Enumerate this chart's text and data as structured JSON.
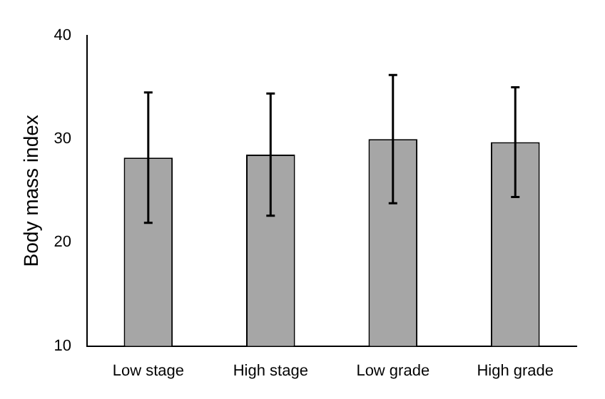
{
  "chart_data": {
    "type": "bar",
    "ylabel": "Body mass index",
    "categories": [
      "Low stage",
      "High stage",
      "Low grade",
      "High grade"
    ],
    "values": [
      28.2,
      28.5,
      30.0,
      29.7
    ],
    "color": "#a6a6a6",
    "errors": [
      6.3,
      5.9,
      6.2,
      5.3
    ],
    "ylim": [
      10,
      40
    ],
    "yticks": [
      10,
      20,
      30,
      40
    ],
    "grid": false,
    "legend": false
  }
}
